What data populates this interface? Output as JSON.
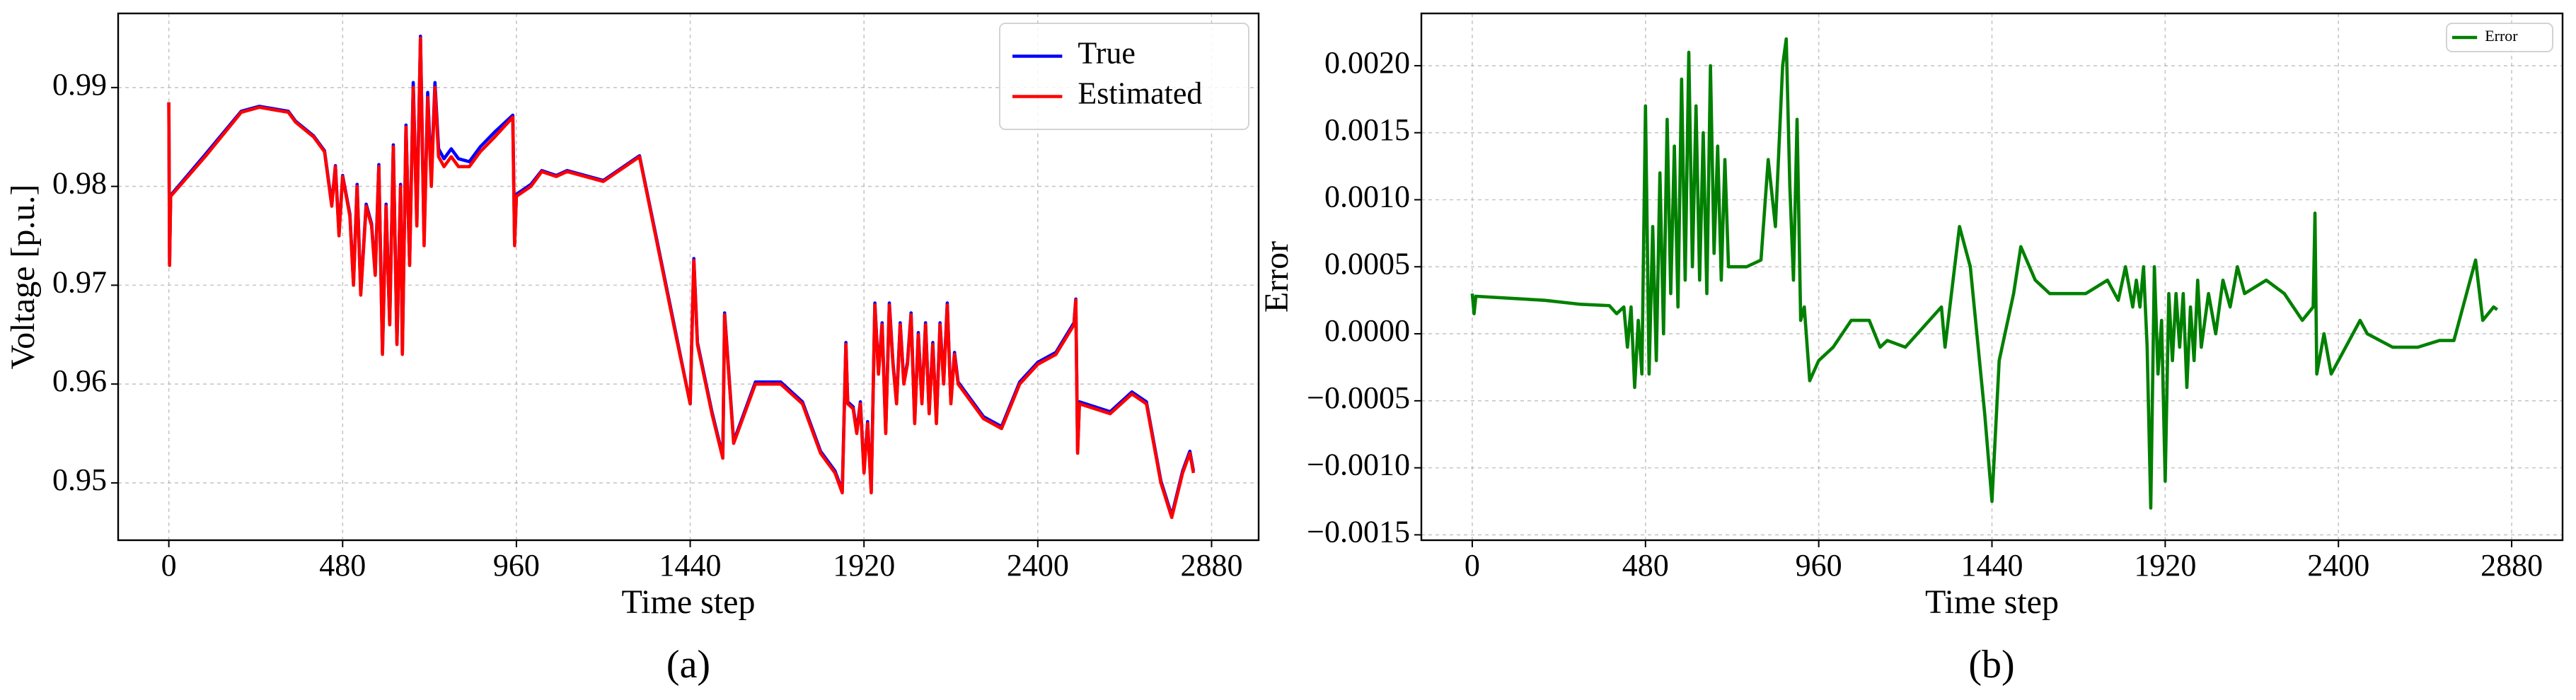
{
  "chart_data": [
    {
      "type": "line",
      "caption": "(a)",
      "x_label": "Time step",
      "y_label": "Voltage [p.u.]",
      "xlim": [
        -140,
        3010
      ],
      "ylim": [
        0.9442,
        0.9975
      ],
      "xticks": [
        0,
        480,
        960,
        1440,
        1920,
        2400,
        2880
      ],
      "yticks": [
        0.95,
        0.96,
        0.97,
        0.98,
        0.99
      ],
      "grid": true,
      "legend": "upper right",
      "x": [
        0,
        2,
        5,
        100,
        200,
        250,
        330,
        350,
        400,
        430,
        450,
        460,
        470,
        480,
        500,
        510,
        520,
        530,
        545,
        560,
        570,
        580,
        590,
        600,
        610,
        620,
        630,
        640,
        645,
        655,
        665,
        675,
        685,
        695,
        705,
        715,
        725,
        735,
        745,
        760,
        780,
        800,
        830,
        860,
        900,
        950,
        955,
        960,
        1000,
        1030,
        1070,
        1100,
        1150,
        1200,
        1300,
        1350,
        1400,
        1440,
        1450,
        1460,
        1500,
        1530,
        1535,
        1560,
        1620,
        1690,
        1750,
        1800,
        1840,
        1860,
        1870,
        1875,
        1890,
        1900,
        1910,
        1920,
        1930,
        1940,
        1950,
        1960,
        1970,
        1980,
        1990,
        2000,
        2010,
        2020,
        2030,
        2040,
        2050,
        2060,
        2070,
        2080,
        2090,
        2100,
        2110,
        2120,
        2130,
        2140,
        2150,
        2160,
        2170,
        2180,
        2200,
        2250,
        2300,
        2350,
        2400,
        2450,
        2500,
        2505,
        2510,
        2515,
        2600,
        2660,
        2700,
        2740,
        2770,
        2800,
        2820,
        2830
      ],
      "series": [
        {
          "name": "True",
          "color": "#0000ff",
          "values": [
            0.9885,
            0.9722,
            0.9791,
            0.9832,
            0.9876,
            0.9881,
            0.9876,
            0.9866,
            0.9851,
            0.9836,
            0.9782,
            0.9821,
            0.9752,
            0.9811,
            0.9772,
            0.9702,
            0.9802,
            0.9692,
            0.9782,
            0.9762,
            0.9712,
            0.9822,
            0.9632,
            0.9782,
            0.9662,
            0.9842,
            0.9642,
            0.9802,
            0.9632,
            0.9862,
            0.9722,
            0.9905,
            0.9765,
            0.9952,
            0.9745,
            0.9895,
            0.9808,
            0.9905,
            0.9838,
            0.9828,
            0.9838,
            0.9828,
            0.9825,
            0.984,
            0.9855,
            0.9872,
            0.9742,
            0.9792,
            0.9802,
            0.9816,
            0.9811,
            0.9816,
            0.9811,
            0.9806,
            0.9831,
            0.9742,
            0.9652,
            0.958,
            0.9727,
            0.9642,
            0.9572,
            0.9527,
            0.9672,
            0.9542,
            0.9602,
            0.9602,
            0.9582,
            0.9532,
            0.9512,
            0.9492,
            0.9642,
            0.9582,
            0.9577,
            0.9552,
            0.9582,
            0.9512,
            0.9562,
            0.9492,
            0.9682,
            0.9612,
            0.9662,
            0.9552,
            0.9682,
            0.9622,
            0.9582,
            0.9662,
            0.9602,
            0.9622,
            0.9672,
            0.9562,
            0.9652,
            0.9582,
            0.9662,
            0.9572,
            0.9642,
            0.9562,
            0.9662,
            0.9602,
            0.9682,
            0.9582,
            0.9632,
            0.9602,
            0.9592,
            0.9567,
            0.9557,
            0.9602,
            0.9622,
            0.9632,
            0.9662,
            0.9686,
            0.9532,
            0.9582,
            0.9572,
            0.9592,
            0.9582,
            0.9502,
            0.9467,
            0.9512,
            0.9532,
            0.9512
          ]
        },
        {
          "name": "Estimated",
          "color": "#ff0000",
          "values": [
            0.9885,
            0.972,
            0.979,
            0.983,
            0.9875,
            0.988,
            0.9875,
            0.9865,
            0.985,
            0.9835,
            0.978,
            0.982,
            0.975,
            0.981,
            0.977,
            0.97,
            0.98,
            0.969,
            0.978,
            0.976,
            0.971,
            0.982,
            0.963,
            0.978,
            0.966,
            0.984,
            0.964,
            0.98,
            0.963,
            0.986,
            0.972,
            0.99,
            0.976,
            0.995,
            0.974,
            0.989,
            0.98,
            0.99,
            0.983,
            0.982,
            0.983,
            0.982,
            0.982,
            0.9835,
            0.985,
            0.987,
            0.974,
            0.979,
            0.98,
            0.9815,
            0.981,
            0.9815,
            0.981,
            0.9805,
            0.983,
            0.974,
            0.965,
            0.958,
            0.9725,
            0.964,
            0.957,
            0.9525,
            0.967,
            0.954,
            0.96,
            0.96,
            0.958,
            0.953,
            0.951,
            0.949,
            0.964,
            0.958,
            0.9575,
            0.955,
            0.958,
            0.951,
            0.956,
            0.949,
            0.968,
            0.961,
            0.966,
            0.955,
            0.968,
            0.962,
            0.958,
            0.966,
            0.96,
            0.962,
            0.967,
            0.956,
            0.965,
            0.958,
            0.966,
            0.957,
            0.964,
            0.956,
            0.966,
            0.96,
            0.968,
            0.958,
            0.963,
            0.96,
            0.959,
            0.9565,
            0.9555,
            0.96,
            0.962,
            0.963,
            0.966,
            0.9685,
            0.953,
            0.958,
            0.957,
            0.959,
            0.958,
            0.95,
            0.9465,
            0.951,
            0.953,
            0.951
          ]
        }
      ]
    },
    {
      "type": "line",
      "caption": "(b)",
      "x_label": "Time step",
      "y_label": "Error",
      "xlim": [
        -141,
        3021
      ],
      "ylim": [
        -0.00154,
        0.00239
      ],
      "xticks": [
        0,
        480,
        960,
        1440,
        1920,
        2400,
        2880
      ],
      "yticks": [
        {
          "value": -0.0015,
          "label": "−0.0015"
        },
        {
          "value": -0.001,
          "label": "−0.0010"
        },
        {
          "value": -0.0005,
          "label": "−0.0005"
        },
        {
          "value": 0,
          "label": "0.0000"
        },
        {
          "value": 0.0005,
          "label": "0.0005"
        },
        {
          "value": 0.001,
          "label": "0.0010"
        },
        {
          "value": 0.0015,
          "label": "0.0015"
        },
        {
          "value": 0.002,
          "label": "0.0020"
        }
      ],
      "grid": true,
      "legend": "upper right",
      "x": [
        0,
        5,
        10,
        200,
        300,
        380,
        400,
        420,
        430,
        440,
        450,
        460,
        470,
        480,
        490,
        500,
        510,
        520,
        530,
        540,
        550,
        560,
        570,
        580,
        590,
        600,
        610,
        620,
        630,
        640,
        650,
        660,
        670,
        680,
        690,
        700,
        710,
        720,
        760,
        800,
        820,
        840,
        860,
        870,
        880,
        890,
        900,
        910,
        920,
        935,
        960,
        1000,
        1050,
        1100,
        1130,
        1150,
        1200,
        1300,
        1310,
        1350,
        1380,
        1420,
        1440,
        1460,
        1500,
        1520,
        1560,
        1600,
        1700,
        1760,
        1790,
        1810,
        1830,
        1840,
        1850,
        1860,
        1870,
        1880,
        1890,
        1900,
        1910,
        1920,
        1930,
        1940,
        1950,
        1960,
        1970,
        1980,
        1990,
        2000,
        2010,
        2020,
        2040,
        2060,
        2080,
        2100,
        2120,
        2140,
        2200,
        2250,
        2300,
        2330,
        2335,
        2340,
        2360,
        2380,
        2440,
        2460,
        2480,
        2550,
        2620,
        2680,
        2720,
        2780,
        2800,
        2830,
        2840
      ],
      "series": [
        {
          "name": "Error",
          "color": "#008000",
          "values": [
            0.0003,
            0.00015,
            0.00028,
            0.00025,
            0.00022,
            0.00021,
            0.00015,
            0.0002,
            -0.0001,
            0.0002,
            -0.0004,
            0.0001,
            -0.0003,
            0.0017,
            -0.0003,
            0.0008,
            -0.0002,
            0.0012,
            0,
            0.0016,
            0.0003,
            0.0014,
            0.0002,
            0.0019,
            0.0004,
            0.0021,
            0.0005,
            0.0017,
            0.0004,
            0.0015,
            0.0003,
            0.002,
            0.0006,
            0.0014,
            0.0004,
            0.0013,
            0.0005,
            0.0005,
            0.0005,
            0.00055,
            0.0013,
            0.0008,
            0.002,
            0.0022,
            0.0011,
            0.0004,
            0.0016,
            0.0001,
            0.0002,
            -0.00035,
            -0.0002,
            -0.0001,
            0.0001,
            0.0001,
            -0.0001,
            -5e-05,
            -0.0001,
            0.0002,
            -0.0001,
            0.0008,
            0.0005,
            -0.0006,
            -0.00125,
            -0.0002,
            0.0003,
            0.00065,
            0.0004,
            0.0003,
            0.0003,
            0.0004,
            0.00025,
            0.0005,
            0.0002,
            0.0004,
            0.0002,
            0.0005,
            -0.0001,
            -0.0013,
            0.0005,
            -0.0003,
            0.0001,
            -0.0011,
            0.0003,
            -0.0002,
            0.0003,
            -0.0001,
            0.0003,
            -0.0004,
            0.0002,
            -0.0002,
            0.0004,
            -0.0001,
            0.0003,
            0,
            0.0004,
            0.0002,
            0.0005,
            0.0003,
            0.0004,
            0.0003,
            0.0001,
            0.0002,
            0.0009,
            -0.0003,
            0,
            -0.0003,
            0,
            0.0001,
            0,
            -0.0001,
            -0.0001,
            -5e-05,
            -5e-05,
            0.00055,
            0.0001,
            0.0002,
            0.00018
          ]
        }
      ]
    }
  ]
}
